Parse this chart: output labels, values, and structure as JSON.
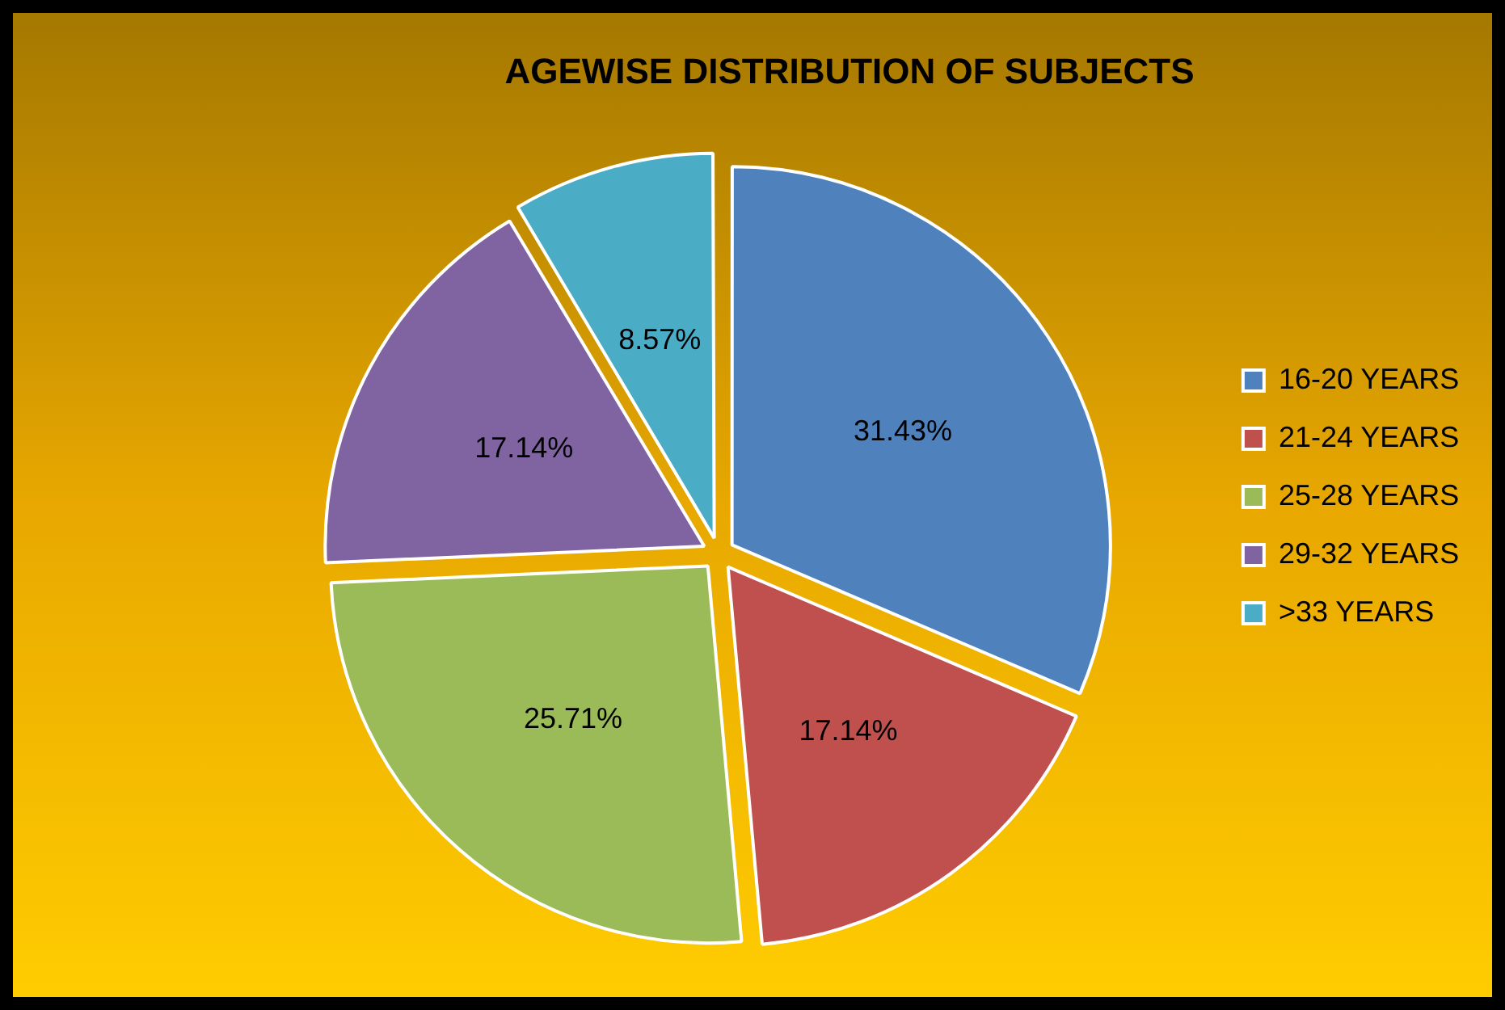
{
  "chart_data": {
    "type": "pie",
    "title": "AGEWISE DISTRIBUTION OF SUBJECTS",
    "categories": [
      "16-20 YEARS",
      "21-24 YEARS",
      "25-28 YEARS",
      "29-32 YEARS",
      ">33 YEARS"
    ],
    "values": [
      31.43,
      17.14,
      25.71,
      17.14,
      8.57
    ],
    "value_labels": [
      "31.43%",
      "17.14%",
      "25.71%",
      "17.14%",
      "8.57%"
    ],
    "colors": [
      "#4f81bd",
      "#c0504d",
      "#9bbb59",
      "#8064a2",
      "#4bacc6"
    ],
    "legend": "right"
  }
}
